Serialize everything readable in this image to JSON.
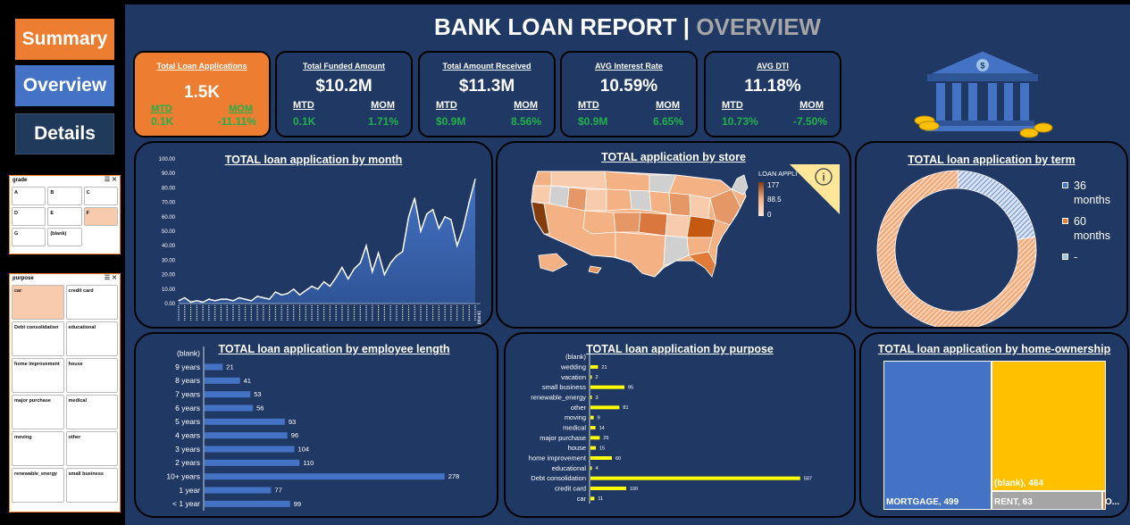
{
  "nav": {
    "summary": "Summary",
    "overview": "Overview",
    "details": "Details"
  },
  "slicers": {
    "grade": {
      "title": "grade",
      "items": [
        "A",
        "B",
        "C",
        "D",
        "E",
        "F",
        "G",
        "(blank)"
      ],
      "selected": "F"
    },
    "purpose": {
      "title": "purpose",
      "items": [
        "car",
        "credit card",
        "Debt consolidation",
        "educational",
        "home improvement",
        "house",
        "major purchase",
        "medical",
        "moving",
        "other",
        "renewable_energy",
        "small business"
      ],
      "selected": "car"
    }
  },
  "header": {
    "title": "BANK LOAN REPORT",
    "separator": "|",
    "subtitle": "OVERVIEW"
  },
  "kpis": [
    {
      "label": "Total Loan  Applications",
      "value": "1.5K",
      "mtd_label": "MTD",
      "mom_label": "MOM",
      "mtd": "0.1K",
      "mom": "-11.11%"
    },
    {
      "label": "Total Funded Amount",
      "value": "$10.2M",
      "mtd_label": "MTD",
      "mom_label": "MOM",
      "mtd": "0.1K",
      "mom": "1.71%"
    },
    {
      "label": "Total Amount Received",
      "value": "$11.3M",
      "mtd_label": "MTD",
      "mom_label": "MOM",
      "mtd": "$0.9M",
      "mom": "8.56%"
    },
    {
      "label": "AVG Interest Rate",
      "value": "10.59%",
      "mtd_label": "MTD",
      "mom_label": "MOM",
      "mtd": "$0.9M",
      "mom": "6.65%"
    },
    {
      "label": "AVG DTI",
      "value": "11.18%",
      "mtd_label": "MTD",
      "mom_label": "MOM",
      "mtd": "10.73%",
      "mom": "-7.50%"
    }
  ],
  "icons": {
    "bank": "bank-building-icon",
    "coins": "gold-coins-icon",
    "info": "info-icon"
  },
  "colors": {
    "accent": "#ED7D31",
    "blue": "#4472C4",
    "panel": "#1F3864",
    "positive": "#21B14B",
    "yellow": "#FFC000"
  },
  "chart_data": [
    {
      "type": "area",
      "title": "TOTAL loan application by month",
      "y_ticks": [
        "100.00",
        "90.00",
        "80.00",
        "70.00",
        "60.00",
        "50.00",
        "40.00",
        "30.00",
        "20.00",
        "10.00",
        "0.00"
      ],
      "ylim": [
        0,
        100
      ],
      "last_label": "(blank)",
      "values": [
        2,
        4,
        1,
        2,
        1,
        3,
        2,
        3,
        3,
        2,
        4,
        3,
        2,
        5,
        4,
        3,
        8,
        6,
        7,
        10,
        6,
        9,
        12,
        10,
        15,
        12,
        18,
        25,
        17,
        24,
        28,
        40,
        22,
        35,
        20,
        28,
        33,
        36,
        60,
        73,
        50,
        62,
        65,
        52,
        60,
        58,
        40,
        52,
        70,
        86
      ]
    },
    {
      "type": "map",
      "title": "TOTAL application by store",
      "legend_title": "LOAN APPLI",
      "legend_values": [
        "177",
        "88.5",
        "0"
      ]
    },
    {
      "type": "pie",
      "title": "TOTAL loan application by term",
      "labels": [
        "36 months",
        "60 months",
        "-"
      ],
      "values": [
        22,
        78,
        0
      ],
      "colors": [
        "#4472C4",
        "#ED7D31",
        "#9DC3E6"
      ]
    },
    {
      "type": "bar",
      "title": "TOTAL loan application by employee length",
      "categories": [
        "(blank)",
        "9 years",
        "8 years",
        "7 years",
        "6 years",
        "5 years",
        "4 years",
        "3 years",
        "2 years",
        "10+ years",
        "1 year",
        "< 1 year"
      ],
      "values": [
        null,
        21,
        41,
        53,
        56,
        93,
        96,
        104,
        110,
        278,
        77,
        99
      ],
      "value_labels": [
        "",
        "21",
        "41",
        "53",
        "56",
        "93",
        "96",
        "104",
        "110",
        "278",
        "77",
        "99"
      ],
      "xlim": [
        0,
        300
      ]
    },
    {
      "type": "bar",
      "title": "TOTAL loan application by purpose",
      "categories": [
        "(blank)",
        "wedding",
        "vacation",
        "small business",
        "renewable_energy",
        "other",
        "moving",
        "medical",
        "major purchase",
        "house",
        "home improvement",
        "educational",
        "Debt consolidation",
        "credit card",
        "car"
      ],
      "values": [
        null,
        21,
        2,
        95,
        3,
        81,
        9,
        14,
        26,
        15,
        60,
        4,
        587,
        100,
        11
      ],
      "value_labels": [
        "",
        "21",
        "2",
        "95",
        "3",
        "81",
        "9",
        "14",
        "26",
        "15",
        "60",
        "4",
        "587",
        "100",
        "11"
      ],
      "xlim": [
        0,
        600
      ]
    },
    {
      "type": "heatmap",
      "title": "TOTAL loan application by home-ownership",
      "tiles": [
        {
          "label": "MORTGAGE, 499",
          "value": 499,
          "color": "#4472C4"
        },
        {
          "label": "(blank), 464",
          "value": 464,
          "color": "#FFC000"
        },
        {
          "label": "RENT, 63",
          "value": 63,
          "color": "#A5A5A5"
        },
        {
          "label": "O...",
          "value": 2,
          "color": "#ED7D31"
        }
      ]
    }
  ]
}
